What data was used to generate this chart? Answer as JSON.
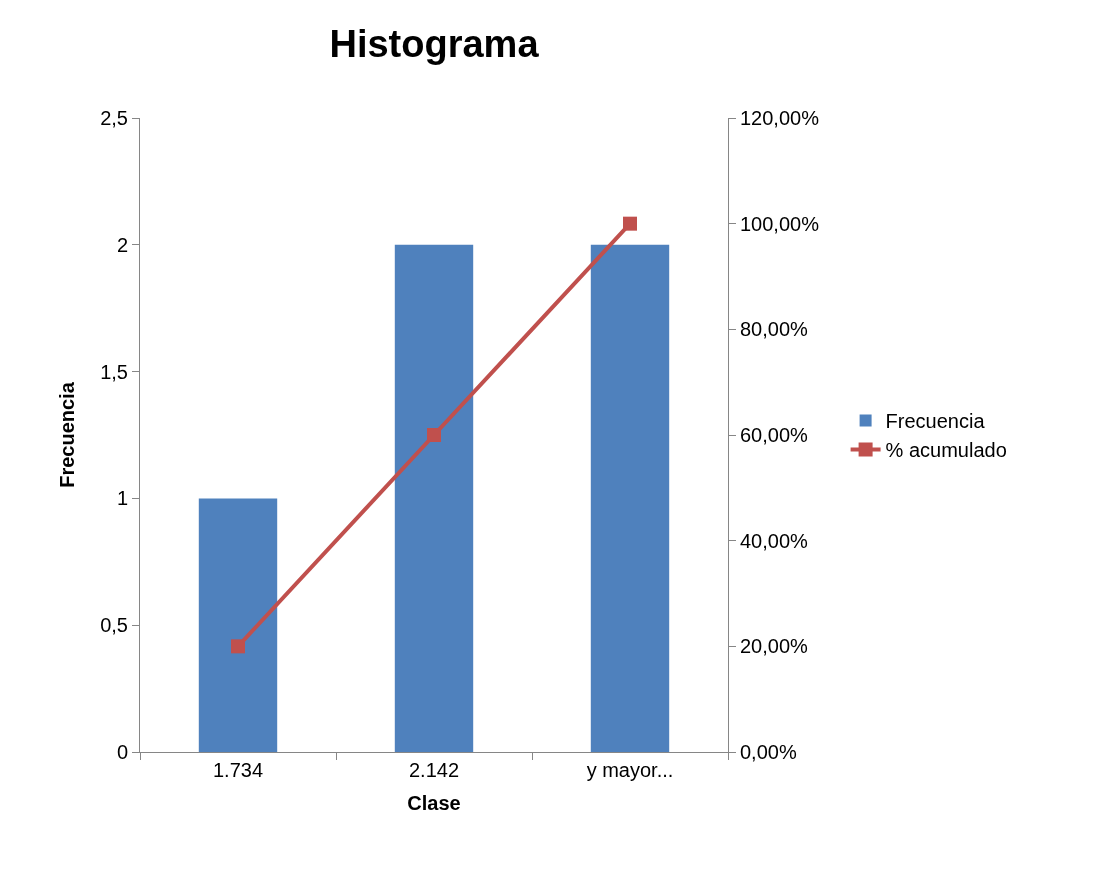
{
  "chart_data": {
    "type": "bar",
    "title": "Histograma",
    "xlabel": "Clase",
    "ylabel": "Frecuencia",
    "categories": [
      "1.734",
      "2.142",
      "y mayor..."
    ],
    "series": [
      {
        "name": "Frecuencia",
        "color": "#4f81bd",
        "values": [
          1,
          2,
          2
        ]
      },
      {
        "name": "% acumulado",
        "type": "line",
        "axis": "y2",
        "color": "#c0504d",
        "marker": "square",
        "values": [
          20,
          60,
          100
        ]
      }
    ],
    "ylim": [
      0,
      2.5
    ],
    "yticks": [
      0,
      {
        "value": 0.5,
        "label": "0,5"
      },
      1,
      {
        "value": 1.5,
        "label": "1,5"
      },
      2,
      {
        "value": 2.5,
        "label": "2,5"
      }
    ],
    "y2lim": [
      0,
      120
    ],
    "y2ticks": [
      {
        "value": 0,
        "label": "0,00%"
      },
      {
        "value": 20,
        "label": "20,00%"
      },
      {
        "value": 40,
        "label": "40,00%"
      },
      {
        "value": 60,
        "label": "60,00%"
      },
      {
        "value": 80,
        "label": "80,00%"
      },
      {
        "value": 100,
        "label": "100,00%"
      },
      {
        "value": 120,
        "label": "120,00%"
      }
    ],
    "grid": false,
    "legend": "right"
  }
}
